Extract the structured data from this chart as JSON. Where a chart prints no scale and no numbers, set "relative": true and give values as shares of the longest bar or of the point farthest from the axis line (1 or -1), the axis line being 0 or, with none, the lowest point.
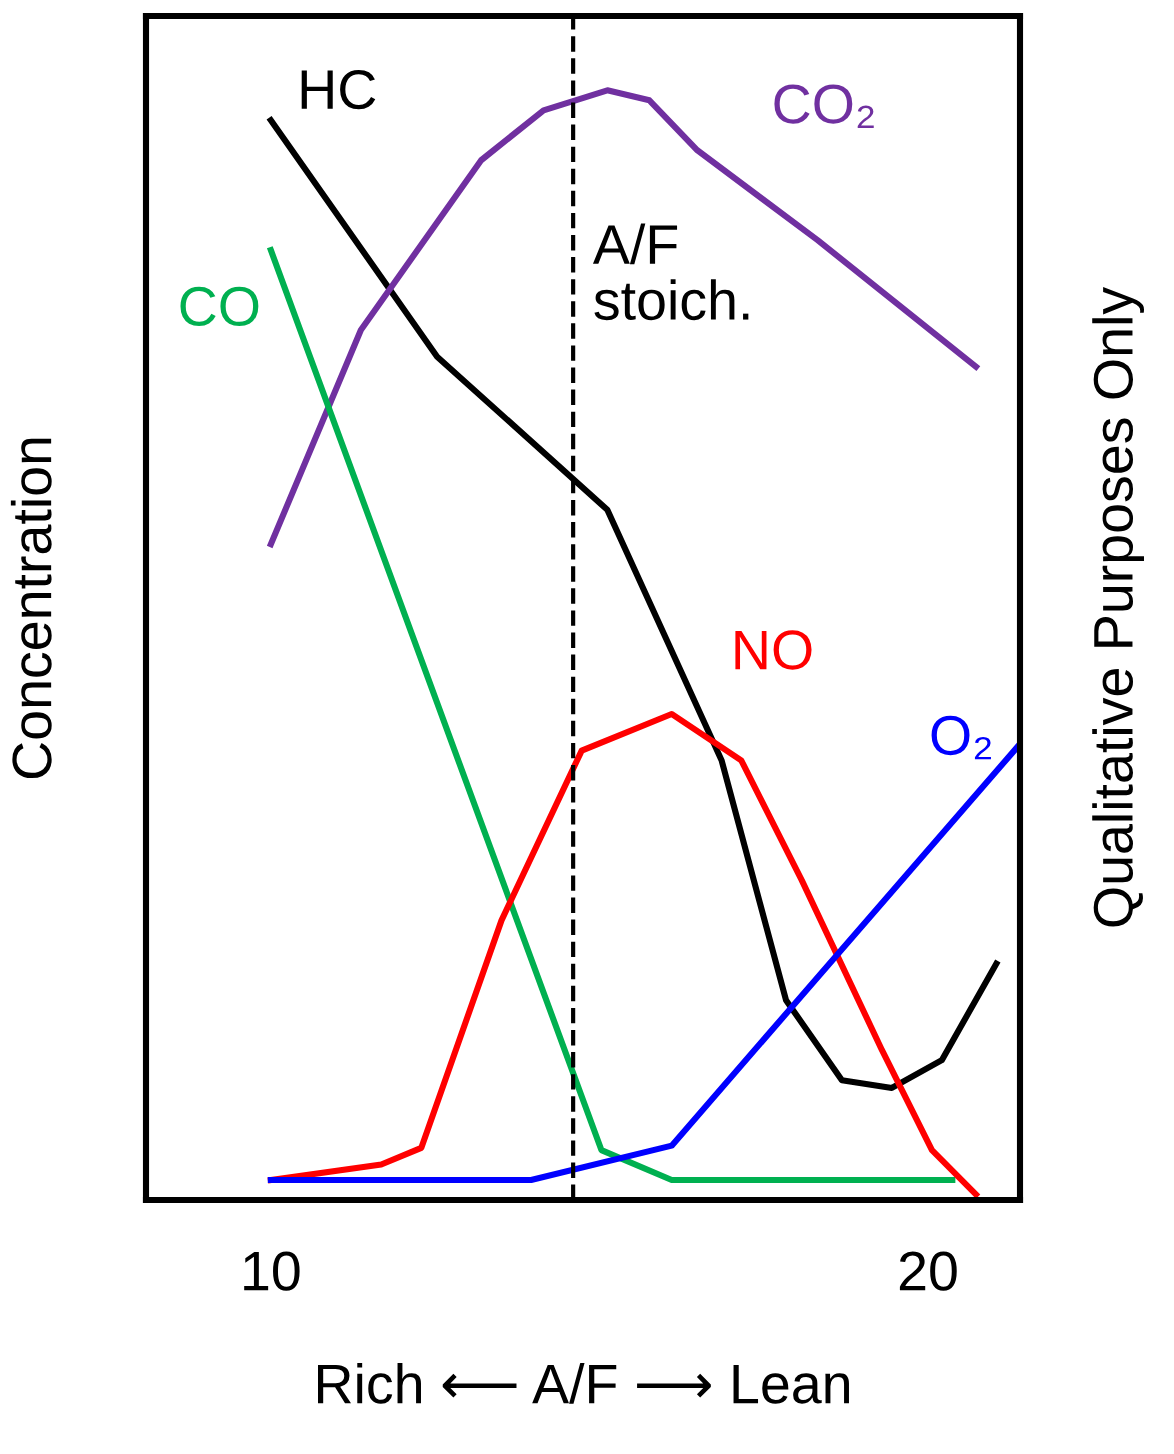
{
  "chart_data": {
    "type": "line",
    "relative": true,
    "xlabel": "Rich ⟵ A/F ⟶ Lean",
    "ylabel": "Concentration",
    "xlim": [
      8.1,
      21.4
    ],
    "xticks": [
      10,
      20
    ],
    "tick_labels": "x",
    "grid": false,
    "legend": false,
    "marker": "none",
    "line_style": "solid",
    "series": [
      {
        "name": "HC",
        "color": "#000000",
        "x": [
          10,
          12.53,
          15.12,
          16.86,
          17.84,
          18.69,
          19.45,
          20.21,
          21.04
        ],
        "values": [
          0.973,
          0.76,
          0.622,
          0.396,
          0.18,
          0.108,
          0.101,
          0.126,
          0.213
        ]
      },
      {
        "name": "CO₂",
        "color": "#7030a0",
        "x": [
          10,
          11.37,
          13.2,
          14.15,
          15.12,
          15.76,
          16.49,
          18.32,
          20.73
        ],
        "values": [
          0.591,
          0.784,
          0.937,
          0.982,
          1.0,
          0.991,
          0.946,
          0.865,
          0.751
        ]
      },
      {
        "name": "CO",
        "color": "#00b050",
        "x": [
          10,
          15.03,
          16.1,
          20.37
        ],
        "values": [
          0.856,
          0.045,
          0.018,
          0.018
        ]
      },
      {
        "name": "NO",
        "color": "#ff0000",
        "x": [
          10,
          11.68,
          12.29,
          13.51,
          14.73,
          16.1,
          17.16,
          18.08,
          19.3,
          20.06,
          20.73
        ],
        "values": [
          0.018,
          0.032,
          0.047,
          0.252,
          0.405,
          0.438,
          0.396,
          0.288,
          0.135,
          0.045,
          0.005
        ]
      },
      {
        "name": "O₂",
        "color": "#0000ff",
        "x": [
          10,
          13.96,
          16.1,
          21.4
        ],
        "values": [
          0.018,
          0.018,
          0.049,
          0.411
        ]
      }
    ],
    "ref_lines": [
      {
        "axis": "x",
        "value": 14.6,
        "label": "A/F\nstoich.",
        "color": "#000000",
        "line_style": "dashed"
      }
    ],
    "annotations": [
      "Qualitative Purposes Only"
    ]
  }
}
